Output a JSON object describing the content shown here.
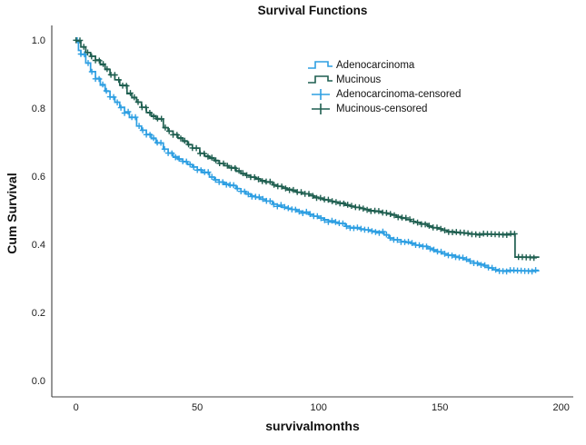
{
  "chart_data": {
    "type": "line",
    "subtype": "kaplan-meier-step-survival",
    "title": "Survival Functions",
    "xlabel": "survivalmonths",
    "ylabel": "Cum Survival",
    "xlim": [
      -10,
      205
    ],
    "ylim": [
      -0.05,
      1.05
    ],
    "xticks": [
      0,
      50,
      100,
      150,
      200
    ],
    "yticks": [
      "0.0",
      "0.2",
      "0.4",
      "0.6",
      "0.8",
      "1.0"
    ],
    "grid": false,
    "legend_position": "inside-top-right",
    "colors": {
      "adenocarcinoma": "#2E9FE2",
      "mucinous": "#1F5F50",
      "axis": "#404040"
    },
    "series": [
      {
        "name": "Adenocarcinoma",
        "color_key": "adenocarcinoma",
        "censor_start": 0.5,
        "censor_interval": 1.5,
        "censor_end": 190,
        "points": [
          [
            0,
            1.0
          ],
          [
            1,
            0.972
          ],
          [
            2,
            0.96
          ],
          [
            4,
            0.935
          ],
          [
            6,
            0.91
          ],
          [
            8,
            0.89
          ],
          [
            10,
            0.87
          ],
          [
            12,
            0.852
          ],
          [
            14,
            0.835
          ],
          [
            16,
            0.82
          ],
          [
            18,
            0.805
          ],
          [
            20,
            0.79
          ],
          [
            22,
            0.775
          ],
          [
            25,
            0.75
          ],
          [
            27,
            0.738
          ],
          [
            29,
            0.726
          ],
          [
            31,
            0.713
          ],
          [
            33,
            0.7
          ],
          [
            36,
            0.682
          ],
          [
            38,
            0.671
          ],
          [
            40,
            0.66
          ],
          [
            42,
            0.652
          ],
          [
            44,
            0.645
          ],
          [
            46,
            0.637
          ],
          [
            48,
            0.63
          ],
          [
            50,
            0.622
          ],
          [
            52,
            0.613
          ],
          [
            55,
            0.6
          ],
          [
            57,
            0.592
          ],
          [
            59,
            0.586
          ],
          [
            61,
            0.58
          ],
          [
            63,
            0.575
          ],
          [
            66,
            0.566
          ],
          [
            68,
            0.558
          ],
          [
            70,
            0.551
          ],
          [
            72,
            0.545
          ],
          [
            74,
            0.54
          ],
          [
            76,
            0.535
          ],
          [
            78,
            0.53
          ],
          [
            81,
            0.521
          ],
          [
            83,
            0.516
          ],
          [
            85,
            0.511
          ],
          [
            87,
            0.508
          ],
          [
            89,
            0.505
          ],
          [
            91,
            0.5
          ],
          [
            93,
            0.496
          ],
          [
            96,
            0.49
          ],
          [
            98,
            0.485
          ],
          [
            100,
            0.48
          ],
          [
            102,
            0.475
          ],
          [
            104,
            0.47
          ],
          [
            106,
            0.467
          ],
          [
            108,
            0.464
          ],
          [
            111,
            0.456
          ],
          [
            113,
            0.452
          ],
          [
            115,
            0.45
          ],
          [
            117,
            0.447
          ],
          [
            119,
            0.445
          ],
          [
            121,
            0.442
          ],
          [
            123,
            0.44
          ],
          [
            125,
            0.438
          ],
          [
            127,
            0.43
          ],
          [
            129,
            0.421
          ],
          [
            131,
            0.416
          ],
          [
            134,
            0.411
          ],
          [
            136,
            0.408
          ],
          [
            138,
            0.405
          ],
          [
            140,
            0.4
          ],
          [
            142,
            0.397
          ],
          [
            145,
            0.391
          ],
          [
            147,
            0.385
          ],
          [
            149,
            0.38
          ],
          [
            151,
            0.375
          ],
          [
            153,
            0.371
          ],
          [
            156,
            0.367
          ],
          [
            158,
            0.362
          ],
          [
            160,
            0.358
          ],
          [
            162,
            0.353
          ],
          [
            164,
            0.348
          ],
          [
            166,
            0.344
          ],
          [
            168,
            0.339
          ],
          [
            170,
            0.333
          ],
          [
            172,
            0.328
          ],
          [
            174,
            0.325
          ],
          [
            191,
            0.325
          ]
        ]
      },
      {
        "name": "Mucinous",
        "color_key": "mucinous",
        "censor_start": 0,
        "censor_interval": 1.6,
        "censor_end": 190,
        "points": [
          [
            0,
            1.0
          ],
          [
            2,
            0.982
          ],
          [
            4,
            0.966
          ],
          [
            6,
            0.955
          ],
          [
            8,
            0.944
          ],
          [
            10,
            0.93
          ],
          [
            12,
            0.916
          ],
          [
            14,
            0.9
          ],
          [
            16,
            0.886
          ],
          [
            18,
            0.87
          ],
          [
            21,
            0.845
          ],
          [
            23,
            0.833
          ],
          [
            25,
            0.82
          ],
          [
            27,
            0.805
          ],
          [
            29,
            0.79
          ],
          [
            31,
            0.78
          ],
          [
            33,
            0.77
          ],
          [
            36,
            0.745
          ],
          [
            38,
            0.735
          ],
          [
            40,
            0.725
          ],
          [
            42,
            0.715
          ],
          [
            44,
            0.705
          ],
          [
            46,
            0.695
          ],
          [
            48,
            0.685
          ],
          [
            51,
            0.67
          ],
          [
            53,
            0.662
          ],
          [
            55,
            0.655
          ],
          [
            57,
            0.648
          ],
          [
            59,
            0.64
          ],
          [
            61,
            0.634
          ],
          [
            63,
            0.628
          ],
          [
            66,
            0.617
          ],
          [
            68,
            0.61
          ],
          [
            70,
            0.605
          ],
          [
            72,
            0.6
          ],
          [
            74,
            0.595
          ],
          [
            76,
            0.59
          ],
          [
            78,
            0.585
          ],
          [
            81,
            0.577
          ],
          [
            83,
            0.573
          ],
          [
            85,
            0.568
          ],
          [
            87,
            0.564
          ],
          [
            89,
            0.56
          ],
          [
            91,
            0.555
          ],
          [
            93,
            0.551
          ],
          [
            96,
            0.546
          ],
          [
            98,
            0.541
          ],
          [
            100,
            0.537
          ],
          [
            102,
            0.533
          ],
          [
            104,
            0.529
          ],
          [
            106,
            0.527
          ],
          [
            108,
            0.524
          ],
          [
            111,
            0.517
          ],
          [
            113,
            0.514
          ],
          [
            115,
            0.511
          ],
          [
            117,
            0.508
          ],
          [
            119,
            0.505
          ],
          [
            121,
            0.502
          ],
          [
            123,
            0.499
          ],
          [
            126,
            0.495
          ],
          [
            128,
            0.492
          ],
          [
            130,
            0.489
          ],
          [
            132,
            0.484
          ],
          [
            134,
            0.479
          ],
          [
            136,
            0.475
          ],
          [
            138,
            0.47
          ],
          [
            140,
            0.467
          ],
          [
            142,
            0.463
          ],
          [
            145,
            0.455
          ],
          [
            147,
            0.451
          ],
          [
            149,
            0.448
          ],
          [
            151,
            0.444
          ],
          [
            153,
            0.44
          ],
          [
            156,
            0.437
          ],
          [
            158,
            0.436
          ],
          [
            160,
            0.435
          ],
          [
            162,
            0.433
          ],
          [
            165,
            0.432
          ],
          [
            180.5,
            0.432
          ],
          [
            181,
            0.365
          ],
          [
            191,
            0.365
          ]
        ]
      }
    ],
    "legend": [
      {
        "label": "Adenocarcinoma",
        "symbol": "step",
        "color_key": "adenocarcinoma"
      },
      {
        "label": "Mucinous",
        "symbol": "step",
        "color_key": "mucinous"
      },
      {
        "label": "Adenocarcinoma-censored",
        "symbol": "plus",
        "color_key": "adenocarcinoma"
      },
      {
        "label": "Mucinous-censored",
        "symbol": "plus",
        "color_key": "mucinous"
      }
    ]
  }
}
